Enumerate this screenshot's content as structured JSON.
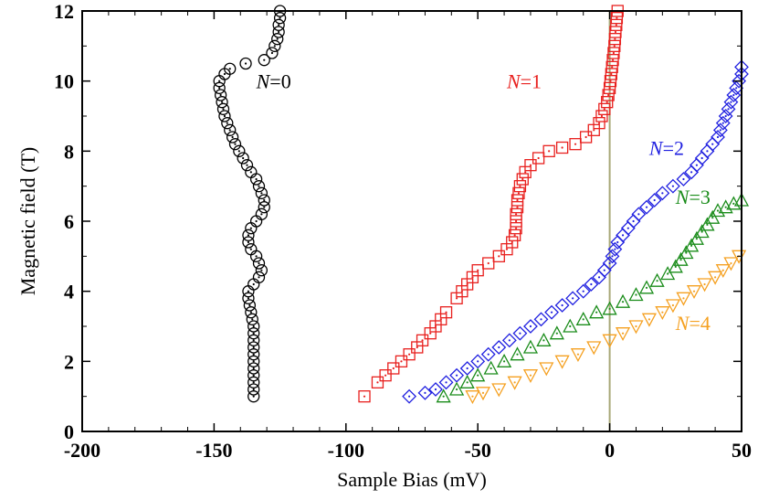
{
  "chart_data": {
    "type": "scatter",
    "title": "",
    "xlabel": "Sample Bias (mV)",
    "ylabel": "Magnetic field (T)",
    "xlim": [
      -200,
      50
    ],
    "ylim": [
      0,
      12
    ],
    "x_ticks": [
      "-200",
      "-150",
      "-100",
      "-50",
      "0",
      "50"
    ],
    "y_ticks": [
      "0",
      "2",
      "4",
      "6",
      "8",
      "10",
      "12"
    ],
    "zero_line_color": "#a8a878",
    "series": [
      {
        "name": "N=0",
        "label_italic": "N",
        "label_rest": "=0",
        "color": "#000000",
        "marker": "circle",
        "points": [
          [
            -135,
            1.0
          ],
          [
            -135,
            1.2
          ],
          [
            -135,
            1.4
          ],
          [
            -135,
            1.6
          ],
          [
            -135,
            1.8
          ],
          [
            -135,
            2.0
          ],
          [
            -135,
            2.2
          ],
          [
            -135,
            2.4
          ],
          [
            -135,
            2.6
          ],
          [
            -135,
            2.8
          ],
          [
            -135,
            3.0
          ],
          [
            -135.5,
            3.2
          ],
          [
            -136,
            3.4
          ],
          [
            -136.5,
            3.6
          ],
          [
            -137,
            3.8
          ],
          [
            -137,
            4.0
          ],
          [
            -135,
            4.2
          ],
          [
            -133,
            4.4
          ],
          [
            -132,
            4.6
          ],
          [
            -133,
            4.8
          ],
          [
            -134,
            5.0
          ],
          [
            -136,
            5.2
          ],
          [
            -137,
            5.4
          ],
          [
            -137,
            5.6
          ],
          [
            -136,
            5.8
          ],
          [
            -134,
            6.0
          ],
          [
            -132,
            6.2
          ],
          [
            -131,
            6.4
          ],
          [
            -131,
            6.6
          ],
          [
            -132,
            6.8
          ],
          [
            -133,
            7.0
          ],
          [
            -134,
            7.2
          ],
          [
            -136,
            7.4
          ],
          [
            -137.5,
            7.6
          ],
          [
            -139,
            7.8
          ],
          [
            -140.5,
            8.0
          ],
          [
            -142,
            8.2
          ],
          [
            -143,
            8.4
          ],
          [
            -144,
            8.6
          ],
          [
            -145,
            8.8
          ],
          [
            -146,
            9.0
          ],
          [
            -146.5,
            9.2
          ],
          [
            -147,
            9.4
          ],
          [
            -147.5,
            9.6
          ],
          [
            -148,
            9.8
          ],
          [
            -148,
            10.0
          ],
          [
            -146,
            10.2
          ],
          [
            -144,
            10.35
          ],
          [
            -138,
            10.5
          ],
          [
            -131,
            10.6
          ],
          [
            -128,
            10.8
          ],
          [
            -127,
            11.0
          ],
          [
            -126,
            11.2
          ],
          [
            -125.5,
            11.4
          ],
          [
            -125.5,
            11.6
          ],
          [
            -125,
            11.8
          ],
          [
            -125,
            12.0
          ]
        ]
      },
      {
        "name": "N=1",
        "label_italic": "N",
        "label_rest": "=1",
        "color": "#e8201e",
        "marker": "square",
        "points": [
          [
            -93,
            1.0
          ],
          [
            -88,
            1.4
          ],
          [
            -85,
            1.6
          ],
          [
            -82,
            1.8
          ],
          [
            -79,
            2.0
          ],
          [
            -76,
            2.2
          ],
          [
            -73,
            2.4
          ],
          [
            -71,
            2.6
          ],
          [
            -68,
            2.8
          ],
          [
            -66,
            3.0
          ],
          [
            -64,
            3.2
          ],
          [
            -62,
            3.4
          ],
          [
            -58,
            3.8
          ],
          [
            -56,
            4.0
          ],
          [
            -54,
            4.2
          ],
          [
            -52,
            4.4
          ],
          [
            -50,
            4.6
          ],
          [
            -46,
            4.8
          ],
          [
            -42,
            5.0
          ],
          [
            -39,
            5.2
          ],
          [
            -37,
            5.4
          ],
          [
            -36,
            5.6
          ],
          [
            -35.5,
            5.8
          ],
          [
            -35.5,
            6.0
          ],
          [
            -35.5,
            6.2
          ],
          [
            -35,
            6.4
          ],
          [
            -35,
            6.6
          ],
          [
            -34.5,
            6.8
          ],
          [
            -34,
            7.0
          ],
          [
            -33,
            7.2
          ],
          [
            -32,
            7.4
          ],
          [
            -30,
            7.6
          ],
          [
            -27,
            7.8
          ],
          [
            -23,
            8.0
          ],
          [
            -18,
            8.1
          ],
          [
            -13,
            8.2
          ],
          [
            -9,
            8.4
          ],
          [
            -6,
            8.6
          ],
          [
            -4,
            8.8
          ],
          [
            -3,
            9.0
          ],
          [
            -2,
            9.2
          ],
          [
            -1,
            9.4
          ],
          [
            -0.5,
            9.6
          ],
          [
            0,
            9.8
          ],
          [
            0.3,
            10.0
          ],
          [
            0.6,
            10.2
          ],
          [
            0.9,
            10.4
          ],
          [
            1.2,
            10.6
          ],
          [
            1.5,
            10.8
          ],
          [
            1.8,
            11.0
          ],
          [
            2,
            11.2
          ],
          [
            2.2,
            11.4
          ],
          [
            2.5,
            11.6
          ],
          [
            2.7,
            11.8
          ],
          [
            3,
            12.0
          ]
        ]
      },
      {
        "name": "N=2",
        "label_italic": "N",
        "label_rest": "=2",
        "color": "#2020e0",
        "marker": "diamond",
        "points": [
          [
            -76,
            1.0
          ],
          [
            -70,
            1.1
          ],
          [
            -66,
            1.2
          ],
          [
            -62,
            1.4
          ],
          [
            -58,
            1.6
          ],
          [
            -54,
            1.8
          ],
          [
            -50,
            2.0
          ],
          [
            -46,
            2.2
          ],
          [
            -42,
            2.4
          ],
          [
            -38,
            2.6
          ],
          [
            -34,
            2.8
          ],
          [
            -30,
            3.0
          ],
          [
            -26,
            3.2
          ],
          [
            -22,
            3.4
          ],
          [
            -18,
            3.6
          ],
          [
            -14,
            3.8
          ],
          [
            -10,
            4.0
          ],
          [
            -7,
            4.2
          ],
          [
            -4,
            4.4
          ],
          [
            -2,
            4.6
          ],
          [
            0,
            4.8
          ],
          [
            1,
            5.0
          ],
          [
            2,
            5.2
          ],
          [
            3,
            5.4
          ],
          [
            5,
            5.6
          ],
          [
            7,
            5.8
          ],
          [
            9,
            6.0
          ],
          [
            11,
            6.2
          ],
          [
            14,
            6.4
          ],
          [
            17,
            6.6
          ],
          [
            20,
            6.8
          ],
          [
            24,
            7.0
          ],
          [
            28,
            7.2
          ],
          [
            31,
            7.4
          ],
          [
            33,
            7.6
          ],
          [
            35,
            7.8
          ],
          [
            37,
            8.0
          ],
          [
            39,
            8.2
          ],
          [
            41,
            8.4
          ],
          [
            42,
            8.6
          ],
          [
            43,
            8.8
          ],
          [
            44,
            9.0
          ],
          [
            45,
            9.2
          ],
          [
            46,
            9.4
          ],
          [
            47,
            9.6
          ],
          [
            48,
            9.8
          ],
          [
            49,
            10.0
          ],
          [
            50,
            10.2
          ],
          [
            50,
            10.4
          ]
        ]
      },
      {
        "name": "N=3",
        "label_italic": "N",
        "label_rest": "=3",
        "color": "#1a8c1a",
        "marker": "triangle-up",
        "points": [
          [
            -63,
            1.0
          ],
          [
            -58,
            1.2
          ],
          [
            -54,
            1.4
          ],
          [
            -50,
            1.6
          ],
          [
            -45,
            1.8
          ],
          [
            -40,
            2.0
          ],
          [
            -35,
            2.2
          ],
          [
            -30,
            2.4
          ],
          [
            -25,
            2.6
          ],
          [
            -20,
            2.8
          ],
          [
            -15,
            3.0
          ],
          [
            -10,
            3.2
          ],
          [
            -5,
            3.4
          ],
          [
            0,
            3.5
          ],
          [
            5,
            3.7
          ],
          [
            10,
            3.9
          ],
          [
            14,
            4.1
          ],
          [
            18,
            4.3
          ],
          [
            22,
            4.5
          ],
          [
            25,
            4.7
          ],
          [
            27,
            4.9
          ],
          [
            29,
            5.1
          ],
          [
            31,
            5.3
          ],
          [
            33,
            5.5
          ],
          [
            35,
            5.7
          ],
          [
            37,
            5.9
          ],
          [
            39,
            6.1
          ],
          [
            41,
            6.3
          ],
          [
            44,
            6.4
          ],
          [
            47,
            6.5
          ],
          [
            50,
            6.6
          ]
        ]
      },
      {
        "name": "N=4",
        "label_italic": "N",
        "label_rest": "=4",
        "color": "#f5a020",
        "marker": "triangle-down",
        "points": [
          [
            -52,
            1.0
          ],
          [
            -48,
            1.1
          ],
          [
            -42,
            1.2
          ],
          [
            -36,
            1.4
          ],
          [
            -30,
            1.6
          ],
          [
            -24,
            1.8
          ],
          [
            -18,
            2.0
          ],
          [
            -12,
            2.2
          ],
          [
            -6,
            2.4
          ],
          [
            0,
            2.6
          ],
          [
            5,
            2.8
          ],
          [
            10,
            3.0
          ],
          [
            15,
            3.2
          ],
          [
            20,
            3.4
          ],
          [
            24,
            3.6
          ],
          [
            28,
            3.8
          ],
          [
            32,
            4.0
          ],
          [
            36,
            4.2
          ],
          [
            40,
            4.4
          ],
          [
            43,
            4.6
          ],
          [
            46,
            4.8
          ],
          [
            49,
            5.0
          ]
        ]
      }
    ]
  }
}
